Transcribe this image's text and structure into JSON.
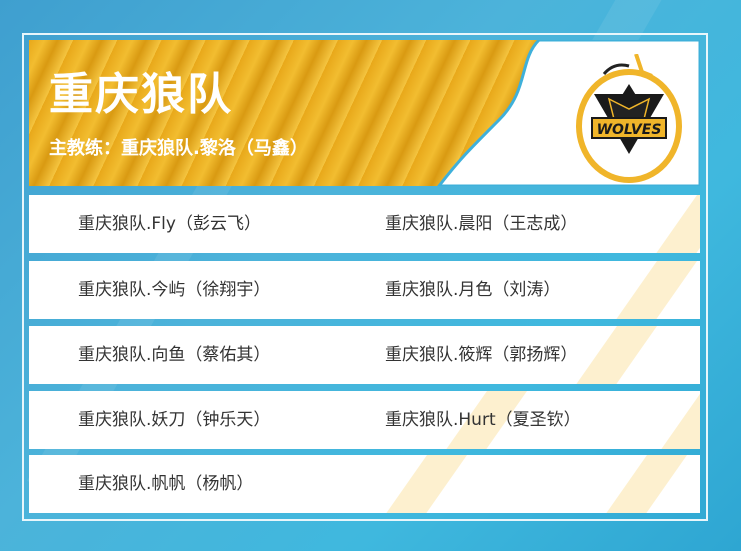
{
  "team": {
    "name": "重庆狼队",
    "coach": "主教练：重庆狼队.黎洛（马鑫）",
    "logo_text": "WOLVES"
  },
  "players": [
    [
      "重庆狼队.Fly（彭云飞）",
      "重庆狼队.晨阳（王志成）"
    ],
    [
      "重庆狼队.今屿（徐翔宇）",
      "重庆狼队.月色（刘涛）"
    ],
    [
      "重庆狼队.向鱼（蔡佑其）",
      "重庆狼队.筱辉（郭扬辉）"
    ],
    [
      "重庆狼队.妖刀（钟乐天）",
      "重庆狼队.Hurt（夏圣钦）"
    ],
    [
      "重庆狼队.帆帆（杨帆）",
      ""
    ]
  ],
  "colors": {
    "accent_gold": "#f0b52a",
    "background_blue": "#3fb0da"
  }
}
